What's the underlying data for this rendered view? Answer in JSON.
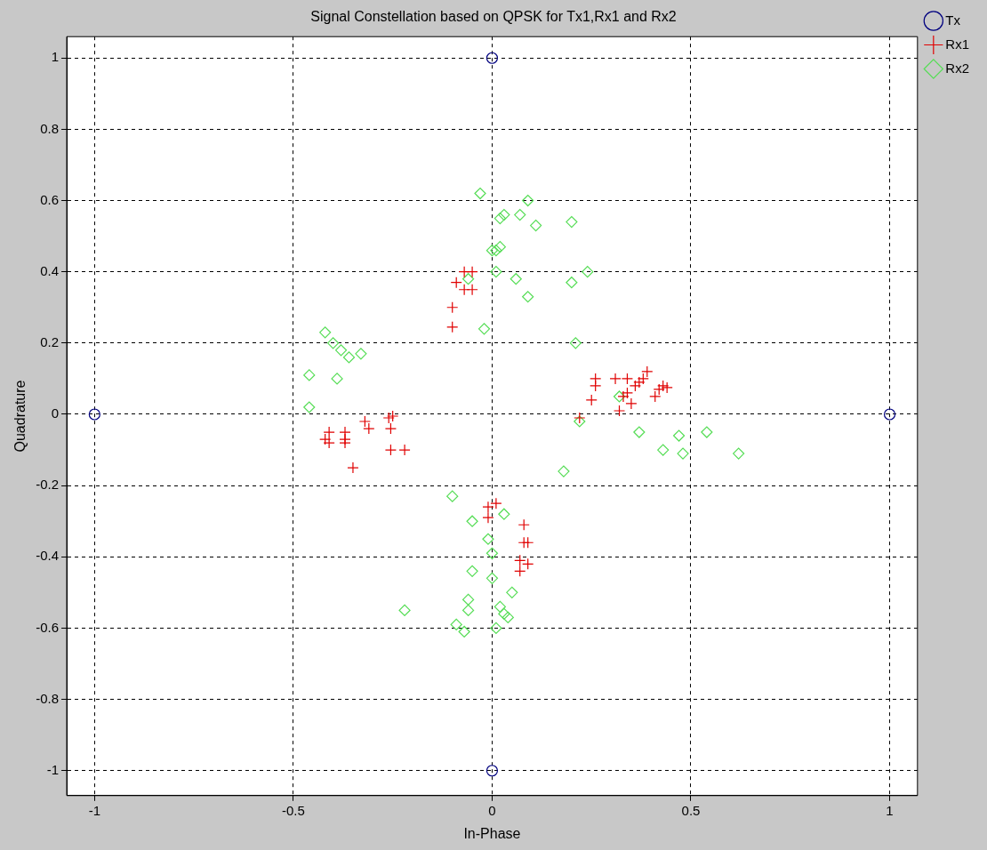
{
  "chart_data": {
    "type": "scatter",
    "title": "Signal Constellation based on QPSK for Tx1,Rx1 and Rx2",
    "xlabel": "In-Phase",
    "ylabel": "Quadrature",
    "xlim": [
      -1.07,
      1.07
    ],
    "ylim": [
      -1.07,
      1.06
    ],
    "xticks": [
      -1,
      -0.5,
      0,
      0.5,
      1
    ],
    "yticks": [
      -1,
      -0.8,
      -0.6,
      -0.4,
      -0.2,
      0,
      0.2,
      0.4,
      0.6,
      0.8,
      1
    ],
    "grid": true,
    "legend": "top right",
    "line_style": "dashed",
    "series": [
      {
        "name": "Tx",
        "color": "#00007f",
        "marker": "circle",
        "x": [
          -1,
          1,
          0,
          0
        ],
        "values": [
          0,
          0,
          1,
          -1
        ]
      },
      {
        "name": "Rx1",
        "color": "#e00000",
        "marker": "cross",
        "x": [
          -0.09,
          -0.07,
          -0.05,
          -0.07,
          -0.05,
          -0.1,
          -0.1,
          -0.42,
          -0.41,
          -0.41,
          -0.37,
          -0.37,
          -0.37,
          -0.32,
          -0.31,
          -0.26,
          -0.25,
          -0.255,
          -0.255,
          -0.22,
          -0.35,
          0.22,
          0.26,
          0.26,
          0.25,
          0.31,
          0.32,
          0.33,
          0.34,
          0.36,
          0.37,
          0.38,
          0.39,
          0.41,
          0.42,
          0.43,
          0.44,
          0.35,
          0.34,
          -0.01,
          0.01,
          -0.01,
          0.08,
          0.08,
          0.09,
          0.07,
          0.09,
          0.07
        ],
        "values": [
          0.37,
          0.4,
          0.4,
          0.35,
          0.35,
          0.3,
          0.245,
          -0.07,
          -0.05,
          -0.08,
          -0.07,
          -0.05,
          -0.08,
          -0.02,
          -0.04,
          -0.01,
          -0.005,
          -0.04,
          -0.1,
          -0.1,
          -0.15,
          -0.01,
          0.08,
          0.1,
          0.04,
          0.1,
          0.01,
          0.05,
          0.1,
          0.08,
          0.09,
          0.1,
          0.12,
          0.05,
          0.07,
          0.08,
          0.075,
          0.03,
          0.06,
          -0.26,
          -0.25,
          -0.29,
          -0.31,
          -0.36,
          -0.36,
          -0.41,
          -0.42,
          -0.44
        ]
      },
      {
        "name": "Rx2",
        "color": "#55dd55",
        "marker": "diamond",
        "x": [
          -0.03,
          0.02,
          0.03,
          0.07,
          0.09,
          0.11,
          0.2,
          0,
          0.01,
          0.02,
          0.01,
          0.06,
          0.09,
          0.2,
          0.24,
          -0.06,
          -0.02,
          0.21,
          -0.42,
          -0.4,
          -0.38,
          -0.36,
          -0.33,
          -0.46,
          -0.39,
          -0.46,
          0.22,
          0.32,
          0.18,
          0.37,
          0.43,
          0.47,
          0.48,
          0.54,
          0.62,
          -0.1,
          -0.05,
          -0.01,
          0.03,
          0,
          0.05,
          0,
          -0.05,
          -0.06,
          -0.06,
          -0.22,
          -0.09,
          -0.07,
          0.01,
          0.02,
          0.04,
          0.03
        ],
        "values": [
          0.62,
          0.55,
          0.56,
          0.56,
          0.6,
          0.53,
          0.54,
          0.46,
          0.46,
          0.47,
          0.4,
          0.38,
          0.33,
          0.37,
          0.4,
          0.38,
          0.24,
          0.2,
          0.23,
          0.2,
          0.18,
          0.16,
          0.17,
          0.11,
          0.1,
          0.02,
          -0.02,
          0.05,
          -0.16,
          -0.05,
          -0.1,
          -0.06,
          -0.11,
          -0.05,
          -0.11,
          -0.23,
          -0.3,
          -0.35,
          -0.28,
          -0.39,
          -0.5,
          -0.46,
          -0.44,
          -0.52,
          -0.55,
          -0.55,
          -0.59,
          -0.61,
          -0.6,
          -0.54,
          -0.57,
          -0.56
        ]
      }
    ]
  }
}
